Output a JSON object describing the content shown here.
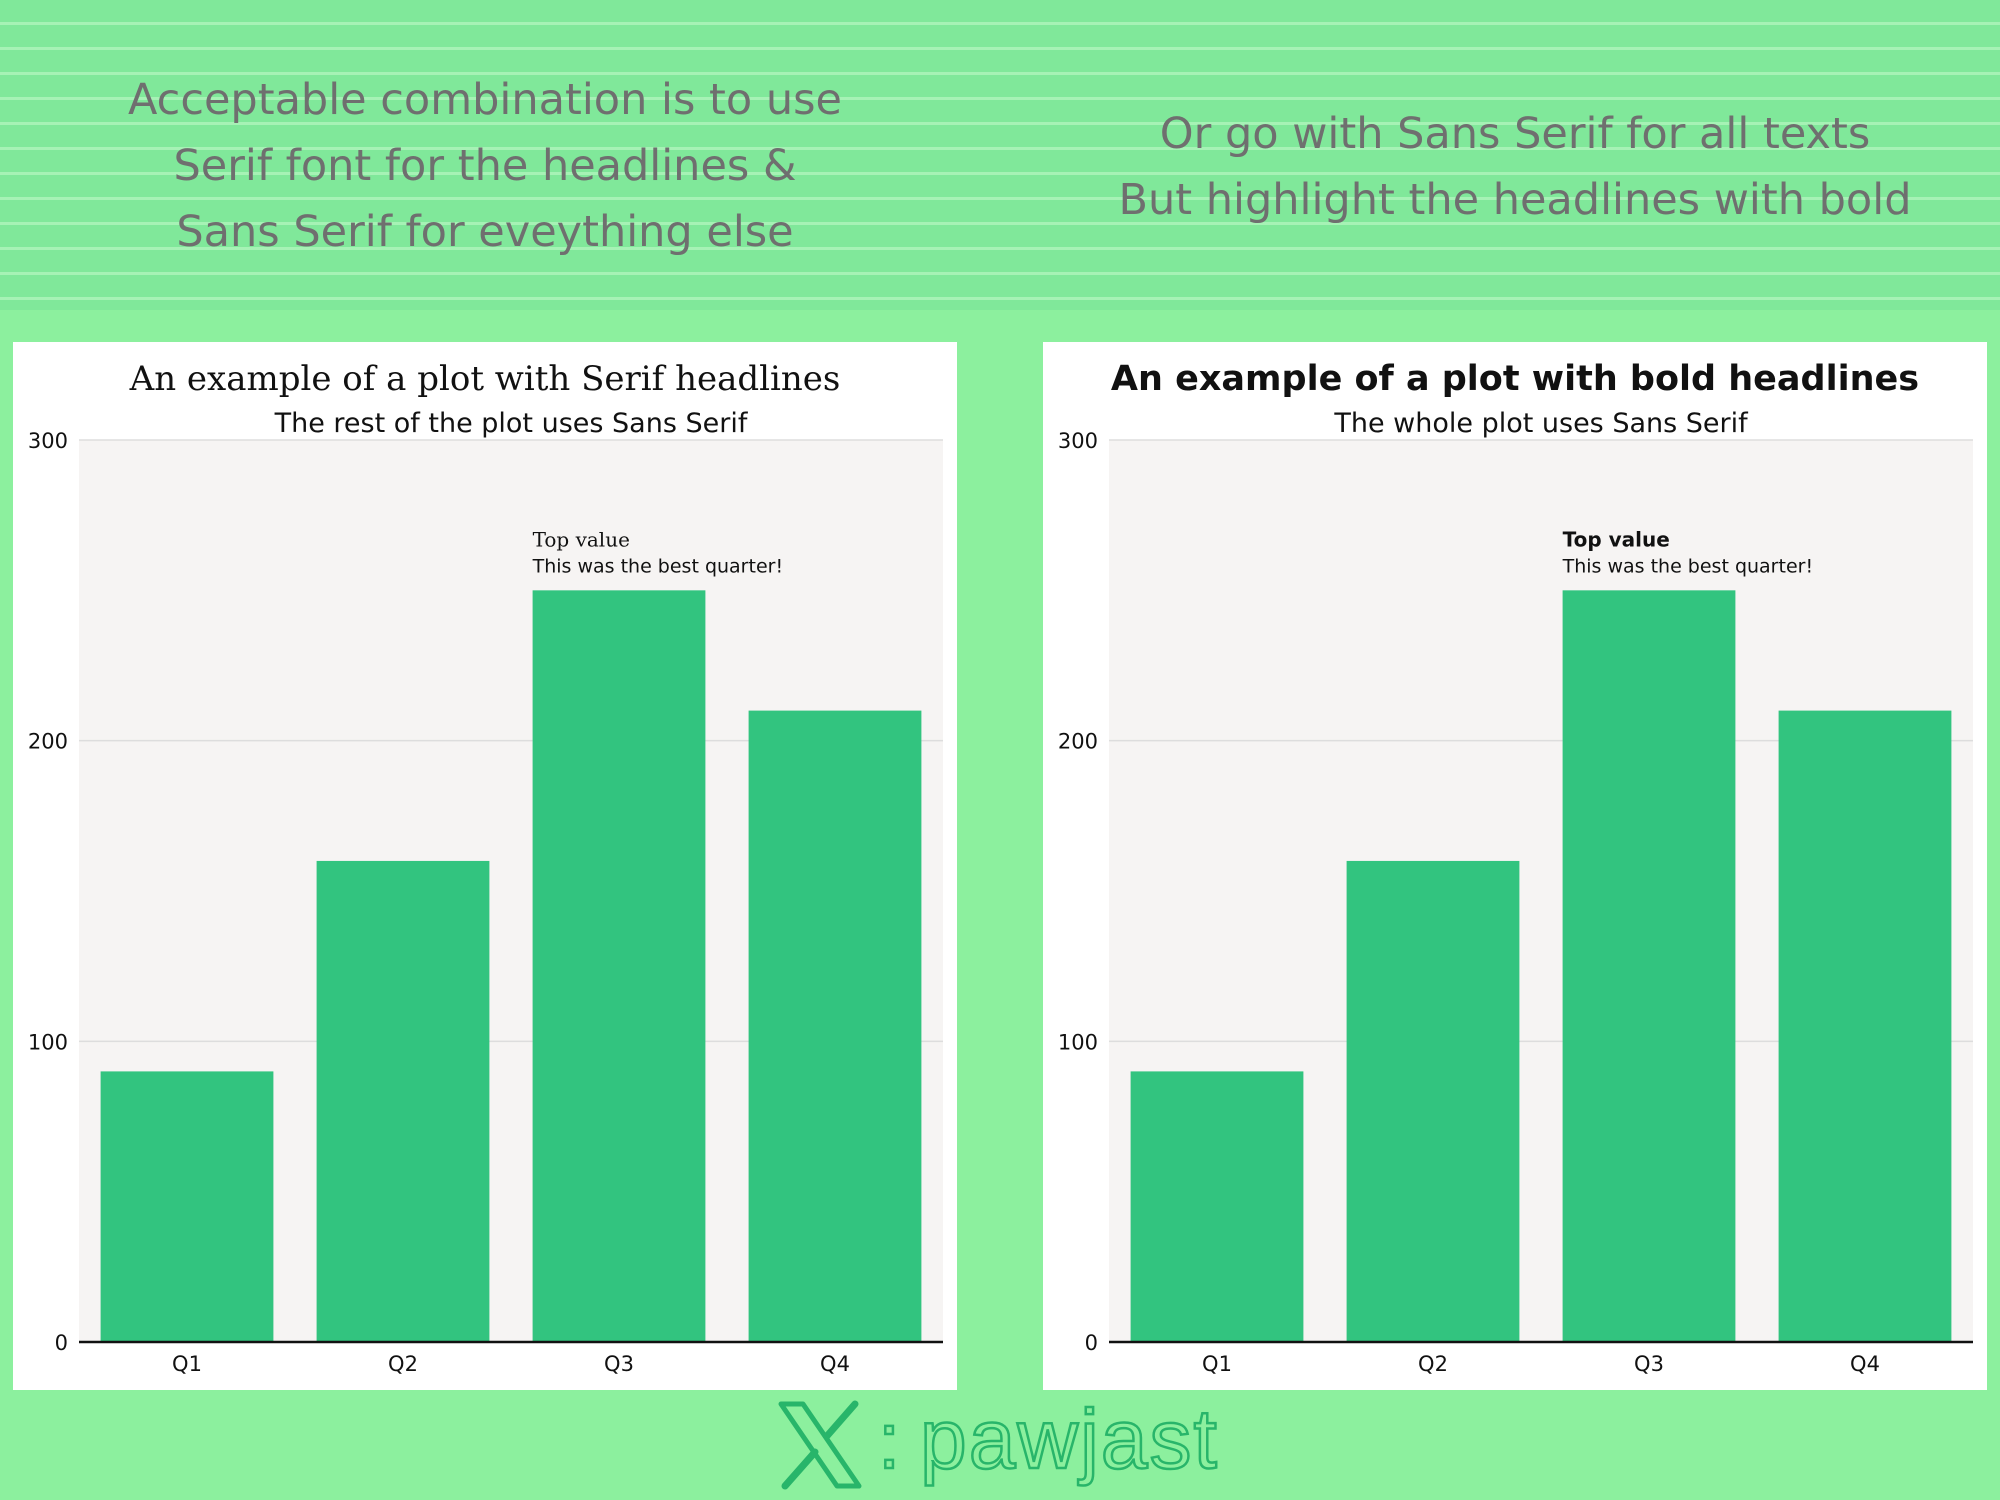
{
  "captions": {
    "left": [
      "Acceptable combination is to use",
      "Serif font for the headlines &",
      "Sans Serif for eveything else"
    ],
    "right": [
      "Or go with Sans Serif for all texts",
      "But highlight the headlines with bold"
    ]
  },
  "footer": {
    "separator": ":",
    "handle": "pawjast",
    "logo_icon": "x-logo-icon"
  },
  "colors": {
    "background": "#8cf09e",
    "bar": "#32c47f",
    "plot_background": "#f6f4f3",
    "caption_text": "#6f6f6f",
    "footer_accent": "#28b56a"
  },
  "chart_data": [
    {
      "type": "bar",
      "title": "An example of a plot with Serif headlines",
      "subtitle": "The rest of the plot uses Sans Serif",
      "categories": [
        "Q1",
        "Q2",
        "Q3",
        "Q4"
      ],
      "values": [
        90,
        160,
        250,
        210
      ],
      "ylim": [
        0,
        300
      ],
      "yticks": [
        0,
        100,
        200,
        300
      ],
      "grid": true,
      "annotation": {
        "category": "Q3",
        "title": "Top value",
        "text": "This was the best quarter!"
      }
    },
    {
      "type": "bar",
      "title": "An example of a plot with bold headlines",
      "subtitle": "The whole plot uses Sans Serif",
      "categories": [
        "Q1",
        "Q2",
        "Q3",
        "Q4"
      ],
      "values": [
        90,
        160,
        250,
        210
      ],
      "ylim": [
        0,
        300
      ],
      "yticks": [
        0,
        100,
        200,
        300
      ],
      "grid": true,
      "annotation": {
        "category": "Q3",
        "title": "Top value",
        "text": "This was the best quarter!"
      }
    }
  ]
}
